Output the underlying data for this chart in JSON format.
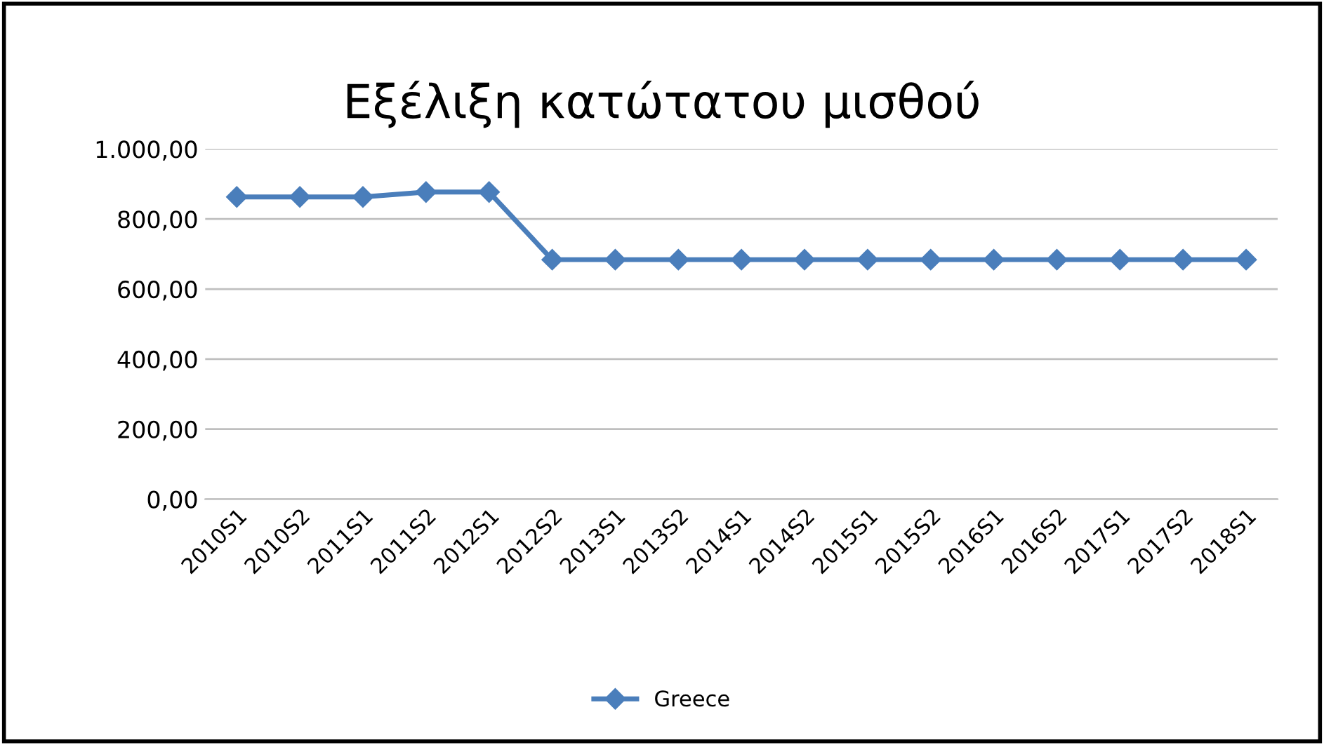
{
  "chart_data": {
    "type": "line",
    "title": "Εξέλιξη κατώτατου μισθού",
    "categories": [
      "2010S1",
      "2010S2",
      "2011S1",
      "2011S2",
      "2012S1",
      "2012S2",
      "2013S1",
      "2013S2",
      "2014S1",
      "2014S2",
      "2015S1",
      "2015S2",
      "2016S1",
      "2016S2",
      "2017S1",
      "2017S2",
      "2018S1"
    ],
    "series": [
      {
        "name": "Greece",
        "color": "#4a7ebb",
        "values": [
          863,
          863,
          863,
          877,
          877,
          684,
          684,
          684,
          684,
          684,
          684,
          684,
          684,
          684,
          684,
          684,
          684
        ]
      }
    ],
    "ylim": [
      0,
      1000
    ],
    "yticks": [
      {
        "value": 0,
        "label": "0,00"
      },
      {
        "value": 200,
        "label": "200,00"
      },
      {
        "value": 400,
        "label": "400,00"
      },
      {
        "value": 600,
        "label": "600,00"
      },
      {
        "value": 800,
        "label": "800,00"
      },
      {
        "value": 1000,
        "label": "1.000,00"
      }
    ],
    "grid": "y",
    "legend": "bottom",
    "marker": "diamond",
    "line_style": "solid"
  }
}
